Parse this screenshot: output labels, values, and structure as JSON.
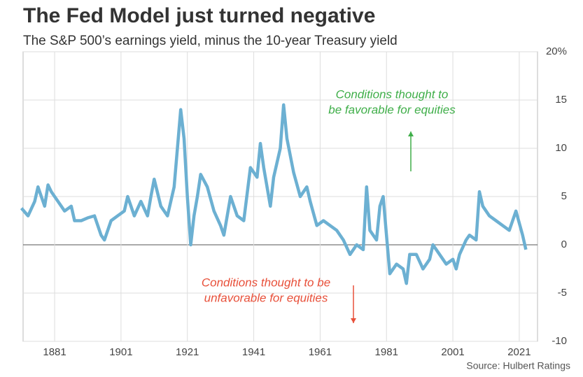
{
  "chart_data": {
    "type": "line",
    "title": "The Fed Model just turned negative",
    "subtitle": "The S&P 500’s earnings yield, minus the 10-year Treasury yield",
    "source": "Source: Hulbert Ratings",
    "annotations": [
      {
        "lines": [
          "Conditions thought to",
          "be favorable for equities"
        ],
        "color": "#3fae49",
        "arrow": "up"
      },
      {
        "lines": [
          "Conditions thought to be",
          "unfavorable for equities"
        ],
        "color": "#e8503a",
        "arrow": "down"
      }
    ],
    "x": [
      1871,
      1873,
      1875,
      1876,
      1878,
      1879,
      1880,
      1882,
      1884,
      1886,
      1887,
      1889,
      1891,
      1893,
      1895,
      1896,
      1898,
      1900,
      1902,
      1903,
      1905,
      1907,
      1909,
      1910,
      1911,
      1913,
      1915,
      1917,
      1918,
      1919,
      1920,
      1921,
      1922,
      1923,
      1924,
      1925,
      1927,
      1929,
      1931,
      1932,
      1934,
      1936,
      1938,
      1940,
      1942,
      1943,
      1944,
      1946,
      1947,
      1949,
      1950,
      1951,
      1953,
      1955,
      1957,
      1958,
      1960,
      1962,
      1964,
      1966,
      1968,
      1970,
      1972,
      1974,
      1975,
      1976,
      1978,
      1979,
      1980,
      1981,
      1982,
      1984,
      1986,
      1987,
      1988,
      1990,
      1992,
      1994,
      1995,
      1997,
      1999,
      2001,
      2002,
      2003,
      2005,
      2006,
      2008,
      2009,
      2010,
      2012,
      2014,
      2016,
      2018,
      2020,
      2022,
      2023
    ],
    "series": [
      {
        "name": "Fed Model",
        "color": "#6cb0d2",
        "values": [
          3.8,
          3.0,
          4.5,
          6.0,
          4.0,
          6.2,
          5.5,
          4.5,
          3.5,
          4.0,
          2.5,
          2.5,
          2.8,
          3.0,
          1.0,
          0.5,
          2.5,
          3.0,
          3.5,
          5.0,
          3.0,
          4.5,
          3.0,
          5.0,
          6.8,
          4.0,
          3.0,
          6.0,
          10.0,
          14.0,
          11.0,
          5.0,
          0.0,
          3.0,
          5.0,
          7.3,
          6.0,
          3.5,
          2.0,
          1.0,
          5.0,
          3.0,
          2.5,
          8.0,
          7.0,
          10.5,
          8.0,
          4.0,
          7.0,
          10.0,
          14.5,
          11.0,
          7.5,
          5.0,
          6.0,
          4.5,
          2.0,
          2.5,
          2.0,
          1.5,
          0.5,
          -1.0,
          0.0,
          -0.5,
          6.0,
          1.5,
          0.5,
          4.0,
          5.0,
          1.0,
          -3.0,
          -2.0,
          -2.5,
          -4.0,
          -1.0,
          -1.0,
          -2.5,
          -1.5,
          0.0,
          -1.0,
          -2.0,
          -1.5,
          -2.5,
          -1.0,
          0.5,
          1.0,
          0.5,
          5.5,
          4.0,
          3.0,
          2.5,
          2.0,
          1.5,
          3.5,
          1.0,
          -0.5
        ]
      }
    ],
    "xlim": [
      1871.5,
      2026.5
    ],
    "xticks": [
      1881,
      1901,
      1921,
      1941,
      1961,
      1981,
      2001,
      2021
    ],
    "ylim": [
      -10,
      20
    ],
    "yticks": [
      -10,
      -5,
      0,
      5,
      10,
      15,
      {
        "value": 20,
        "label": "20%"
      }
    ],
    "grid": true
  }
}
